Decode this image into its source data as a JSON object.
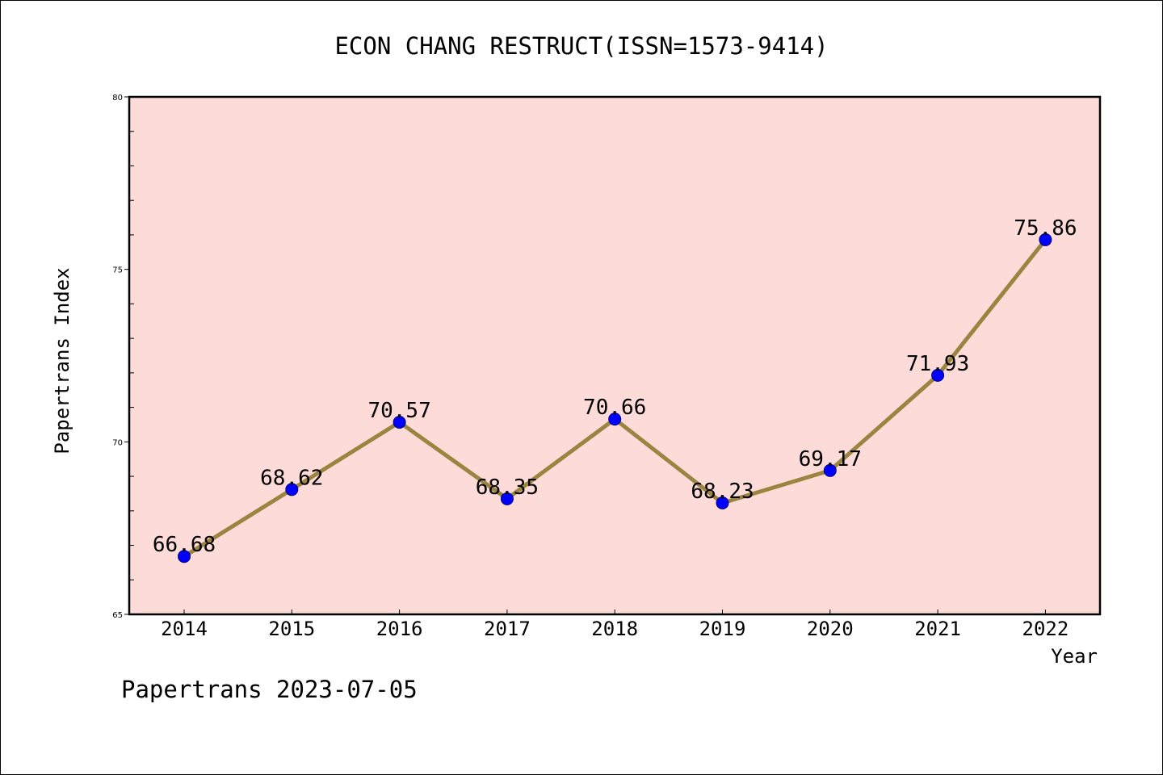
{
  "chart_data": {
    "type": "line",
    "title": "ECON CHANG RESTRUCT(ISSN=1573-9414)",
    "xlabel": "Year",
    "ylabel": "Papertrans Index",
    "categories": [
      "2014",
      "2015",
      "2016",
      "2017",
      "2018",
      "2019",
      "2020",
      "2021",
      "2022"
    ],
    "series": [
      {
        "values": [
          66.68,
          68.62,
          70.57,
          68.35,
          70.66,
          68.23,
          69.17,
          71.93,
          75.86
        ],
        "labels": [
          "66.68",
          "68.62",
          "70.57",
          "68.35",
          "70.66",
          "68.23",
          "69.17",
          "71.93",
          "75.86"
        ]
      }
    ],
    "ylim": [
      65,
      80
    ],
    "yticks": [
      65,
      70,
      75,
      80
    ],
    "ytick_labels": [
      "65",
      "70",
      "75",
      "80"
    ],
    "grid": false,
    "plot_background_color": "#fddbd8",
    "line_color": "#9b8340",
    "marker_color": "#0000ff",
    "marker_edge_color": "#000080"
  },
  "footer": "Papertrans 2023-07-05"
}
